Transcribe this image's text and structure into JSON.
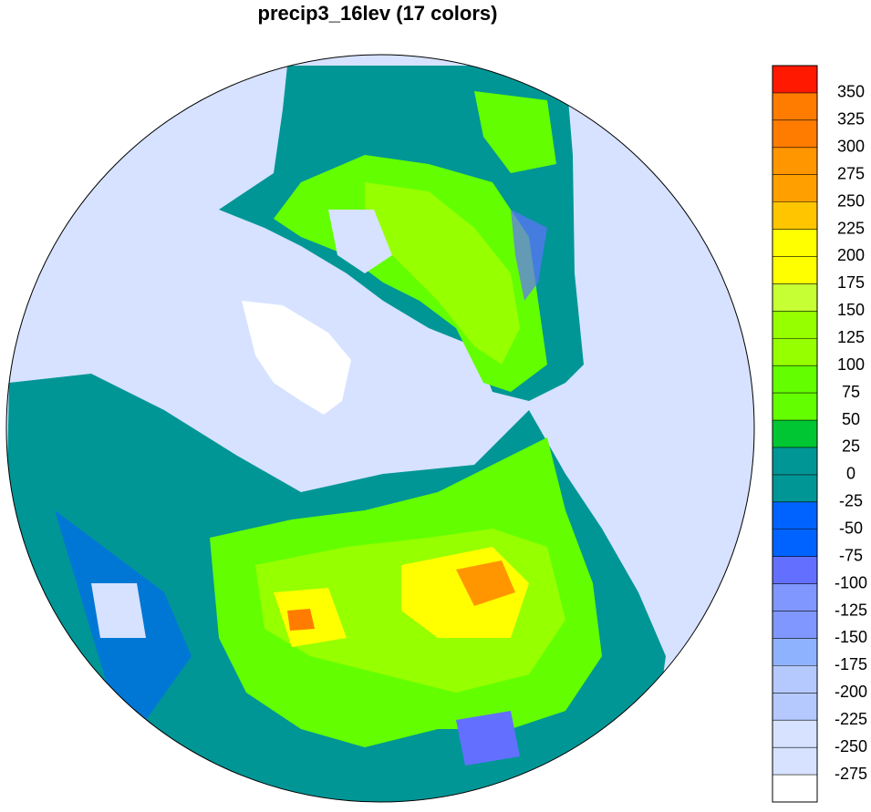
{
  "title": "precip3_16lev (17 colors)",
  "colorbar": {
    "levels": [
      -275,
      -250,
      -225,
      -200,
      -175,
      -150,
      -125,
      -100,
      -75,
      -50,
      -25,
      0,
      25,
      50,
      75,
      100,
      125,
      150,
      175,
      200,
      225,
      250,
      275,
      300,
      325,
      350
    ],
    "colors": [
      "#ffffff",
      "#d6e2ff",
      "#d6e2ff",
      "#b5c9ff",
      "#b5c9ff",
      "#8fb2ff",
      "#7f97ff",
      "#7f97ff",
      "#6370ff",
      "#0063ff",
      "#0063ff",
      "#009696",
      "#009696",
      "#00c633",
      "#63ff00",
      "#63ff00",
      "#96ff00",
      "#96ff00",
      "#c6ff33",
      "#ffff00",
      "#ffff00",
      "#ffc600",
      "#ffa000",
      "#ff9600",
      "#ff7c00",
      "#ff7c00",
      "#ff1900"
    ]
  }
}
